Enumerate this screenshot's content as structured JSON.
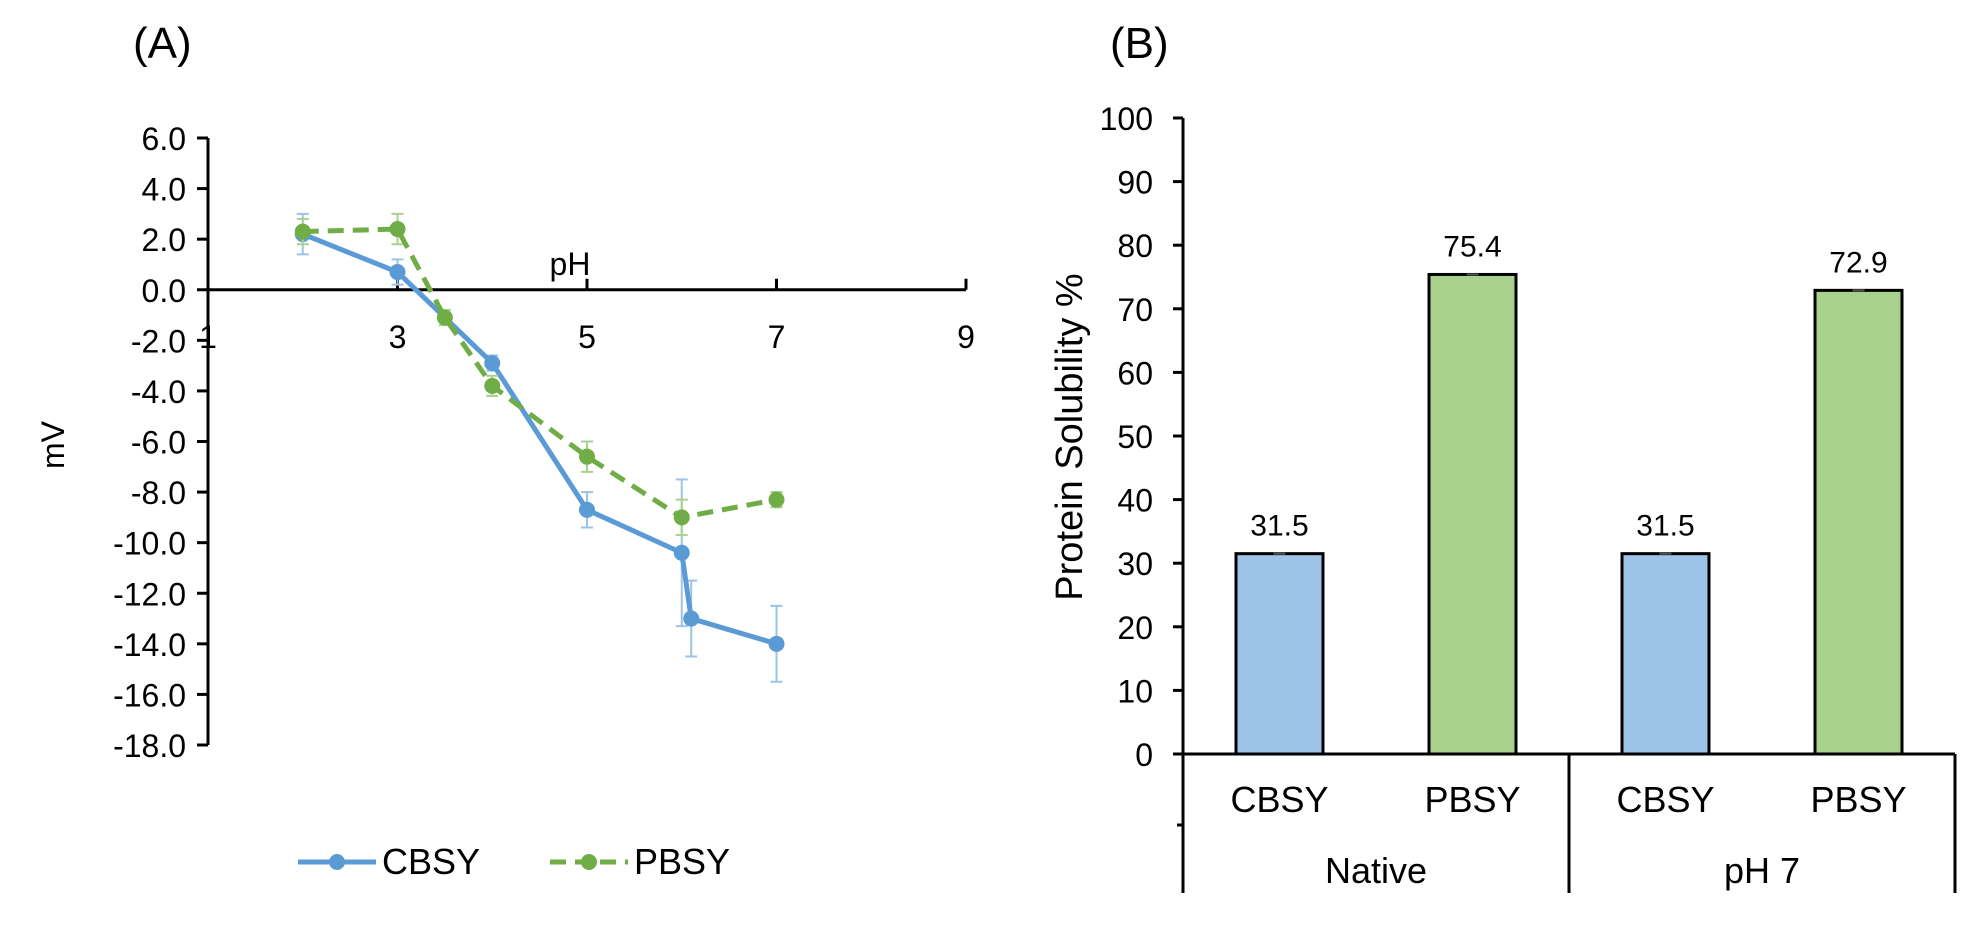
{
  "panels": {
    "a_label": "(A)",
    "b_label": "(B)"
  },
  "chart_data": [
    {
      "type": "line",
      "title": "",
      "xlabel": "pH",
      "ylabel": "mV",
      "xlim": [
        1,
        9
      ],
      "ylim": [
        -18,
        6
      ],
      "x_ticks": [
        "1",
        "3",
        "5",
        "7",
        "9"
      ],
      "y_ticks": [
        "6.0",
        "4.0",
        "2.0",
        "0.0",
        "-2.0",
        "-4.0",
        "-6.0",
        "-8.0",
        "-10.0",
        "-12.0",
        "-14.0",
        "-16.0",
        "-18.0"
      ],
      "legend_position": "bottom",
      "grid": false,
      "series": [
        {
          "name": "CBSY",
          "color": "#5B9BD5",
          "dash": "solid",
          "x": [
            2,
            3,
            4,
            5,
            6,
            6.1,
            7
          ],
          "y": [
            2.2,
            0.7,
            -2.9,
            -8.7,
            -10.4,
            -13.0,
            -14.0
          ],
          "err": [
            0.8,
            0.5,
            0.3,
            0.7,
            2.9,
            1.5,
            1.5
          ]
        },
        {
          "name": "PBSY",
          "color": "#70AD47",
          "dash": "dashed",
          "x": [
            2,
            3,
            3.5,
            4,
            5,
            6,
            7
          ],
          "y": [
            2.3,
            2.4,
            -1.1,
            -3.8,
            -6.6,
            -9.0,
            -8.3
          ],
          "err": [
            0.5,
            0.6,
            0.3,
            0.4,
            0.6,
            0.7,
            0.3
          ]
        }
      ]
    },
    {
      "type": "bar",
      "title": "",
      "xlabel": "",
      "ylabel": "Protein Solubility %",
      "ylim": [
        0,
        100
      ],
      "y_ticks": [
        "0",
        "10",
        "20",
        "30",
        "40",
        "50",
        "60",
        "70",
        "80",
        "90",
        "100"
      ],
      "groups": [
        "Native",
        "pH 7"
      ],
      "categories": [
        "CBSY",
        "PBSY",
        "CBSY",
        "PBSY"
      ],
      "values": [
        31.5,
        75.4,
        31.5,
        72.9
      ],
      "value_labels": [
        "31.5",
        "75.4",
        "31.5",
        "72.9"
      ],
      "colors": [
        "#9DC3E6",
        "#A9D18E",
        "#9DC3E6",
        "#A9D18E"
      ],
      "grid": false
    }
  ]
}
